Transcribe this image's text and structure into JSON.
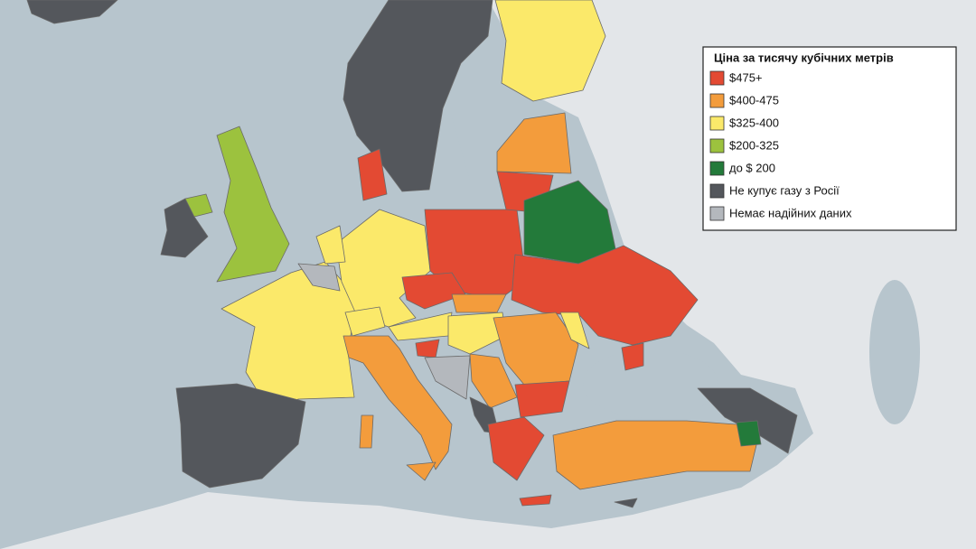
{
  "legend": {
    "title": "Ціна за тисячу кубічних метрів",
    "items": [
      {
        "label": "$475+",
        "color": "#e34a33"
      },
      {
        "label": "$400-475",
        "color": "#f39c3c"
      },
      {
        "label": "$325-400",
        "color": "#fbe96a"
      },
      {
        "label": "$200-325",
        "color": "#9cc23e"
      },
      {
        "label": "до $ 200",
        "color": "#237a3a"
      },
      {
        "label": "Не купує газу з Росії",
        "color": "#54575c"
      },
      {
        "label": "Немає надійних даних",
        "color": "#b4b8bd"
      }
    ]
  }
}
